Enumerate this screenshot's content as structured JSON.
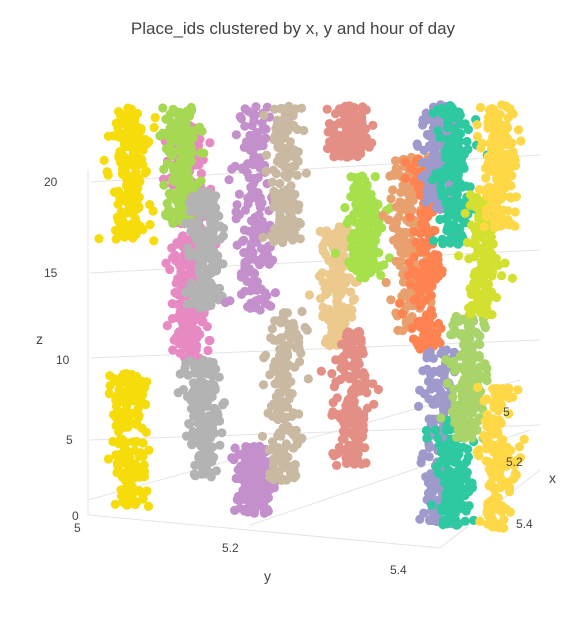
{
  "chart_data": {
    "type": "scatter3d",
    "title": "Place_ids clustered by x, y and hour of day",
    "xlabel": "x",
    "ylabel": "y",
    "zlabel": "z",
    "x_ticks": [
      "5",
      "5.2",
      "5.4"
    ],
    "y_ticks": [
      "5",
      "5.2",
      "5.4"
    ],
    "z_ticks": [
      "0",
      "5",
      "10",
      "15",
      "20"
    ],
    "zlim": [
      0,
      24
    ],
    "grid": true,
    "clusters": [
      {
        "color": "#f5dc0a",
        "y": 5.02,
        "z_low": [
          0,
          8
        ],
        "z_high": [
          16,
          24
        ]
      },
      {
        "color": "#e78ac3",
        "y": 5.1,
        "z_low": [
          9,
          15
        ],
        "z_high": [
          15,
          23
        ]
      },
      {
        "color": "#a6d854",
        "y": 5.09,
        "z_low": [
          17,
          24
        ],
        "z_high": [
          17,
          24
        ]
      },
      {
        "color": "#b3b3b3",
        "y": 5.12,
        "z_low": [
          2,
          9
        ],
        "z_high": [
          12,
          19
        ]
      },
      {
        "color": "#c490cc",
        "y": 5.19,
        "z_low": [
          0,
          4
        ],
        "z_high": [
          12,
          24
        ]
      },
      {
        "color": "#c9b9a2",
        "y": 5.23,
        "z_low": [
          2,
          12
        ],
        "z_high": [
          16,
          24
        ]
      },
      {
        "color": "#ecc98d",
        "y": 5.3,
        "z_low": [
          10,
          17
        ],
        "z_high": [
          10,
          17
        ]
      },
      {
        "color": "#e48f85",
        "y": 5.32,
        "z_low": [
          3,
          11
        ],
        "z_high": [
          21,
          24
        ]
      },
      {
        "color": "#a6e04a",
        "y": 5.34,
        "z_low": [
          14,
          20
        ],
        "z_high": [
          14,
          20
        ]
      },
      {
        "color": "#e7a06e",
        "y": 5.4,
        "z_low": [
          11,
          21
        ],
        "z_high": [
          11,
          21
        ]
      },
      {
        "color": "#ff8350",
        "y": 5.42,
        "z_low": [
          10,
          21
        ],
        "z_high": [
          10,
          21
        ]
      },
      {
        "color": "#9e9acb",
        "y": 5.44,
        "z_low": [
          0,
          10
        ],
        "z_high": [
          18,
          24
        ]
      },
      {
        "color": "#2ec9a0",
        "y": 5.46,
        "z_low": [
          0,
          6
        ],
        "z_high": [
          16,
          24
        ]
      },
      {
        "color": "#a8d46a",
        "y": 5.48,
        "z_low": [
          5,
          12
        ],
        "z_high": [
          5,
          12
        ]
      },
      {
        "color": "#d4e030",
        "y": 5.5,
        "z_low": [
          12,
          19
        ],
        "z_high": [
          12,
          19
        ]
      },
      {
        "color": "#ffd847",
        "y": 5.52,
        "z_low": [
          0,
          8
        ],
        "z_high": [
          17,
          24
        ]
      }
    ]
  }
}
